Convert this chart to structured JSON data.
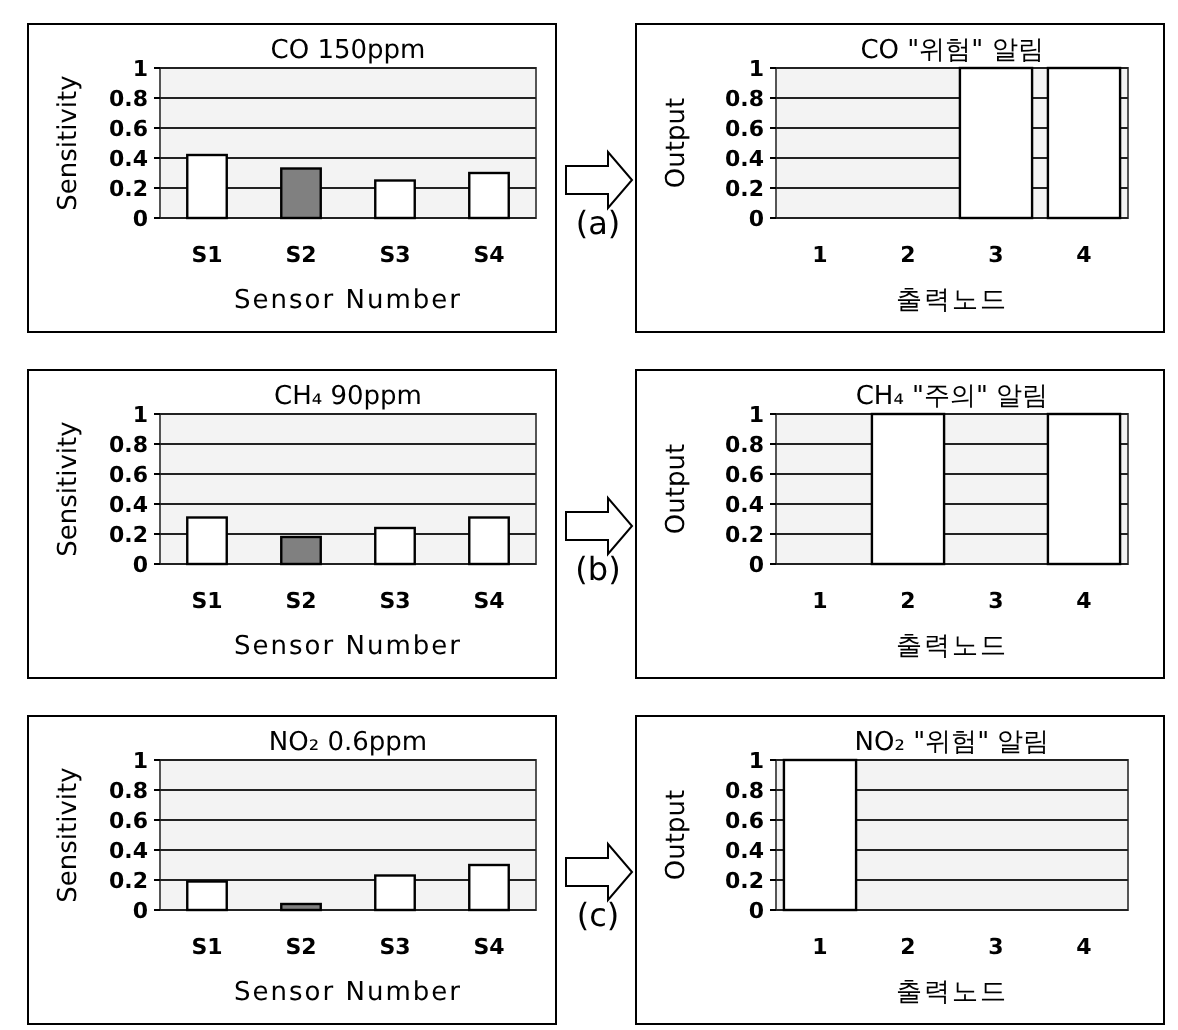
{
  "chart_data": [
    {
      "type": "bar",
      "title": "CO 150ppm",
      "xlabel": "Sensor Number",
      "ylabel": "Sensitivity",
      "categories": [
        "S1",
        "S2",
        "S3",
        "S4"
      ],
      "values": [
        0.42,
        0.33,
        0.25,
        0.3
      ],
      "colors": [
        "#ffffff",
        "#808080",
        "#ffffff",
        "#ffffff"
      ],
      "ylim": [
        0,
        1
      ],
      "yticks": [
        0,
        0.2,
        0.4,
        0.6,
        0.8,
        1
      ],
      "grid": "y",
      "annotations": [
        "(a)"
      ]
    },
    {
      "type": "bar",
      "title": "CO \"위험\" 알림",
      "xlabel": "출력노드",
      "ylabel": "Output",
      "categories": [
        "1",
        "2",
        "3",
        "4"
      ],
      "values": [
        0,
        0,
        1,
        1
      ],
      "colors": [
        "#ffffff",
        "#ffffff",
        "#ffffff",
        "#ffffff"
      ],
      "ylim": [
        0,
        1
      ],
      "yticks": [
        0,
        0.2,
        0.4,
        0.6,
        0.8,
        1
      ],
      "grid": "y"
    },
    {
      "type": "bar",
      "title": "CH₄ 90ppm",
      "xlabel": "Sensor Number",
      "ylabel": "Sensitivity",
      "categories": [
        "S1",
        "S2",
        "S3",
        "S4"
      ],
      "values": [
        0.31,
        0.18,
        0.24,
        0.31
      ],
      "colors": [
        "#ffffff",
        "#808080",
        "#ffffff",
        "#ffffff"
      ],
      "ylim": [
        0,
        1
      ],
      "yticks": [
        0,
        0.2,
        0.4,
        0.6,
        0.8,
        1
      ],
      "grid": "y",
      "annotations": [
        "(b)"
      ]
    },
    {
      "type": "bar",
      "title": "CH₄ \"주의\" 알림",
      "xlabel": "출력노드",
      "ylabel": "Output",
      "categories": [
        "1",
        "2",
        "3",
        "4"
      ],
      "values": [
        0,
        1,
        0,
        1
      ],
      "colors": [
        "#ffffff",
        "#ffffff",
        "#ffffff",
        "#ffffff"
      ],
      "ylim": [
        0,
        1
      ],
      "yticks": [
        0,
        0.2,
        0.4,
        0.6,
        0.8,
        1
      ],
      "grid": "y"
    },
    {
      "type": "bar",
      "title": "NO₂ 0.6ppm",
      "xlabel": "Sensor Number",
      "ylabel": "Sensitivity",
      "categories": [
        "S1",
        "S2",
        "S3",
        "S4"
      ],
      "values": [
        0.19,
        0.04,
        0.23,
        0.3
      ],
      "colors": [
        "#ffffff",
        "#808080",
        "#ffffff",
        "#ffffff"
      ],
      "ylim": [
        0,
        1
      ],
      "yticks": [
        0,
        0.2,
        0.4,
        0.6,
        0.8,
        1
      ],
      "grid": "y",
      "annotations": [
        "(c)"
      ]
    },
    {
      "type": "bar",
      "title": "NO₂ \"위험\" 알림",
      "xlabel": "출력노드",
      "ylabel": "Output",
      "categories": [
        "1",
        "2",
        "3",
        "4"
      ],
      "values": [
        1,
        0,
        0,
        0
      ],
      "colors": [
        "#ffffff",
        "#ffffff",
        "#ffffff",
        "#ffffff"
      ],
      "ylim": [
        0,
        1
      ],
      "yticks": [
        0,
        0.2,
        0.4,
        0.6,
        0.8,
        1
      ],
      "grid": "y"
    }
  ]
}
